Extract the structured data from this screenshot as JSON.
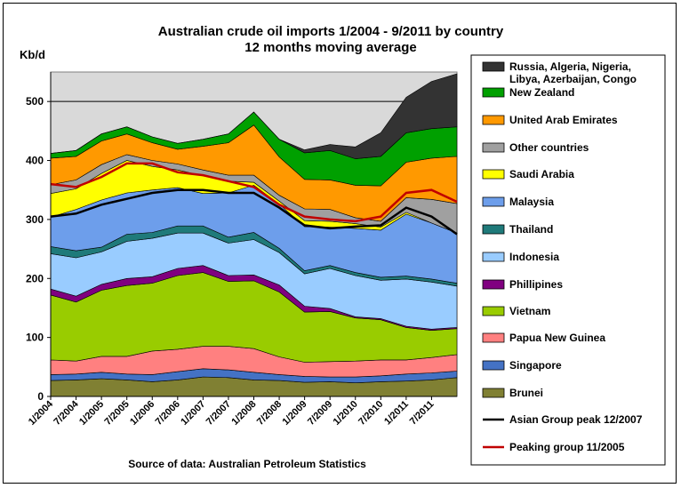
{
  "chart_data": {
    "type": "area",
    "stacked": true,
    "title": "Australian crude oil imports 1/2004 - 9/2011 by country",
    "subtitle": "12 months moving average",
    "ylabel": "Kb/d",
    "ylim": [
      0,
      550
    ],
    "yticks": [
      "0",
      "100",
      "200",
      "300",
      "400",
      "500"
    ],
    "source": "Source of data:  Australian  Petroleum  Statistics",
    "x_tick_labels": [
      "1/2004",
      "7/2004",
      "1/2005",
      "7/2005",
      "1/2006",
      "7/2006",
      "1/2007",
      "7/2007",
      "1/2008",
      "7/2008",
      "1/2009",
      "7/2009",
      "1/2010",
      "7/2010",
      "1/2011",
      "7/2011"
    ],
    "x_points": [
      "1/2004",
      "7/2004",
      "1/2005",
      "7/2005",
      "1/2006",
      "7/2006",
      "1/2007",
      "7/2007",
      "1/2008",
      "7/2008",
      "1/2009",
      "7/2009",
      "1/2010",
      "7/2010",
      "1/2011",
      "7/2011",
      "9/2011"
    ],
    "grid": "horizontal line at 500",
    "legend_position": "right",
    "series": [
      {
        "name": "Brunei",
        "color": "#808033",
        "values": [
          27,
          28,
          30,
          28,
          25,
          28,
          33,
          32,
          28,
          27,
          24,
          25,
          23,
          25,
          26,
          28,
          32
        ]
      },
      {
        "name": "Singapore",
        "color": "#4472C4",
        "values": [
          10,
          10,
          11,
          10,
          12,
          14,
          14,
          13,
          13,
          10,
          10,
          8,
          10,
          10,
          12,
          12,
          11
        ]
      },
      {
        "name": "Papua New Guinea",
        "color": "#FF8080",
        "values": [
          25,
          22,
          27,
          30,
          40,
          38,
          38,
          40,
          40,
          30,
          24,
          26,
          27,
          27,
          24,
          26,
          28
        ]
      },
      {
        "name": "Vietnam",
        "color": "#99CC00",
        "values": [
          110,
          100,
          112,
          120,
          115,
          125,
          125,
          110,
          115,
          110,
          85,
          85,
          73,
          68,
          55,
          46,
          44
        ]
      },
      {
        "name": "Phillipines",
        "color": "#800080",
        "values": [
          10,
          10,
          10,
          12,
          11,
          12,
          12,
          10,
          10,
          12,
          10,
          5,
          2,
          2,
          2,
          2,
          2
        ]
      },
      {
        "name": "Indonesia",
        "color": "#99CCFF",
        "values": [
          60,
          65,
          55,
          63,
          65,
          60,
          55,
          55,
          60,
          55,
          55,
          68,
          70,
          65,
          80,
          80,
          70
        ]
      },
      {
        "name": "Thailand",
        "color": "#1F7A7A",
        "values": [
          12,
          12,
          8,
          12,
          10,
          12,
          12,
          10,
          12,
          7,
          5,
          5,
          5,
          5,
          5,
          5,
          5
        ]
      },
      {
        "name": "Malaysia",
        "color": "#6D9EEB",
        "values": [
          50,
          70,
          80,
          70,
          72,
          65,
          55,
          75,
          80,
          75,
          75,
          65,
          75,
          80,
          105,
          95,
          85
        ]
      },
      {
        "name": "Saudi Arabia",
        "color": "#FFFF00",
        "values": [
          40,
          35,
          45,
          55,
          40,
          30,
          30,
          20,
          5,
          5,
          10,
          10,
          8,
          5,
          3,
          0,
          0
        ]
      },
      {
        "name": "Other countries",
        "color": "#A0A0A0",
        "values": [
          15,
          15,
          15,
          10,
          10,
          10,
          10,
          10,
          12,
          10,
          20,
          20,
          10,
          10,
          25,
          40,
          50
        ]
      },
      {
        "name": "United Arab Emirates",
        "color": "#FF9900",
        "values": [
          45,
          40,
          40,
          35,
          30,
          25,
          40,
          55,
          85,
          65,
          50,
          50,
          55,
          60,
          60,
          70,
          80
        ]
      },
      {
        "name": "New Zealand",
        "color": "#00A000",
        "values": [
          8,
          10,
          12,
          12,
          10,
          10,
          12,
          15,
          22,
          30,
          45,
          50,
          45,
          50,
          50,
          50,
          50
        ]
      },
      {
        "name": "Russia, Algeria, Nigeria, Libya, Azerbaijan, Congo",
        "color": "#333333",
        "values": [
          0,
          0,
          0,
          0,
          0,
          0,
          0,
          0,
          0,
          0,
          5,
          10,
          20,
          40,
          60,
          80,
          90
        ]
      }
    ],
    "lines": [
      {
        "name": "Asian Group peak 12/2007",
        "color": "#000000",
        "values": [
          305,
          310,
          325,
          335,
          345,
          350,
          350,
          345,
          345,
          320,
          290,
          285,
          288,
          290,
          320,
          305,
          275
        ]
      },
      {
        "name": "Peaking group 11/2005",
        "color": "#C00000",
        "values": [
          360,
          355,
          372,
          395,
          395,
          380,
          375,
          365,
          355,
          325,
          305,
          300,
          297,
          305,
          345,
          350,
          330
        ]
      }
    ],
    "legend_order": [
      "Russia, Algeria, Nigeria, Libya, Azerbaijan, Congo",
      "New Zealand",
      "United Arab Emirates",
      "Other countries",
      "Saudi Arabia",
      "Malaysia",
      "Thailand",
      "Indonesia",
      "Phillipines",
      "Vietnam",
      "Papua New Guinea",
      "Singapore",
      "Brunei",
      "Asian Group peak 12/2007",
      "Peaking group 11/2005"
    ]
  }
}
